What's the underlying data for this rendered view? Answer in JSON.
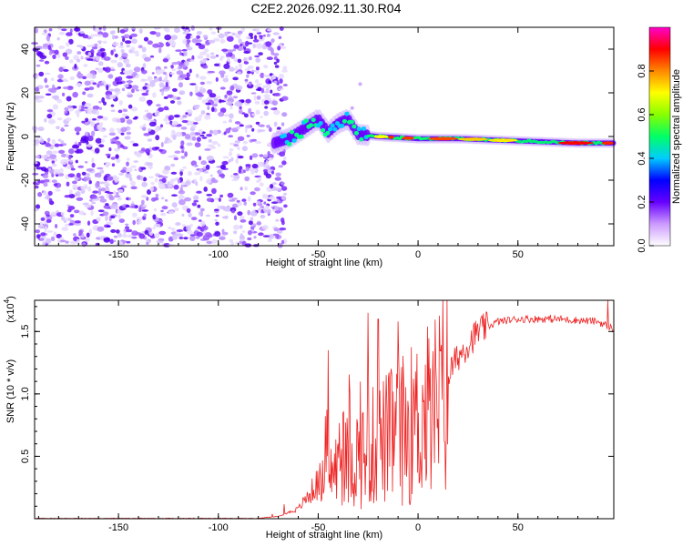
{
  "title": "C2E2.2026.092.11.30.R04",
  "chart_data": [
    {
      "type": "heatmap",
      "name": "spectrogram",
      "xlabel": "Height of straight line (km)",
      "ylabel": "Frequency (Hz)",
      "xlim": [
        -192,
        98
      ],
      "ylim": [
        -50,
        50
      ],
      "xticks": [
        -150,
        -100,
        -50,
        0,
        50
      ],
      "yticks": [
        -40,
        -20,
        0,
        20,
        40
      ],
      "noise_region_x": [
        -192,
        -70
      ],
      "signal_ridge": [
        {
          "x": -72,
          "y": -3
        },
        {
          "x": -65,
          "y": -1
        },
        {
          "x": -58,
          "y": 3
        },
        {
          "x": -50,
          "y": 8
        },
        {
          "x": -45,
          "y": 2
        },
        {
          "x": -40,
          "y": 6
        },
        {
          "x": -35,
          "y": 8
        },
        {
          "x": -30,
          "y": 1
        },
        {
          "x": -20,
          "y": 0
        },
        {
          "x": 0,
          "y": -1
        },
        {
          "x": 20,
          "y": -1
        },
        {
          "x": 50,
          "y": -2
        },
        {
          "x": 80,
          "y": -3
        },
        {
          "x": 98,
          "y": -3
        }
      ],
      "colorbar": {
        "label": "Normalized spectral amplitude",
        "range": [
          0,
          1
        ],
        "ticks": [
          "0.0",
          "0.2",
          "0.4",
          "0.6",
          "0.8"
        ],
        "colors": [
          "#ffffff",
          "#cc99ff",
          "#6600ff",
          "#0000ff",
          "#00ccff",
          "#00ff66",
          "#88ff00",
          "#ffff00",
          "#ff8800",
          "#ff0000",
          "#ff00cc"
        ]
      }
    },
    {
      "type": "line",
      "name": "snr",
      "xlabel": "Height of straight line (km)",
      "ylabel": "SNR (10 * v/v)",
      "yscale_label": "(x10",
      "yscale_exp": "4",
      "xlim": [
        -192,
        98
      ],
      "ylim": [
        0,
        1.75
      ],
      "xticks": [
        -150,
        -100,
        -50,
        0,
        50
      ],
      "yticks": [
        "0.5",
        "1.0",
        "1.5"
      ],
      "ytick_values": [
        0.5,
        1.0,
        1.5
      ],
      "color": "#ee2222",
      "trend": [
        {
          "x": -192,
          "y": 0.0
        },
        {
          "x": -80,
          "y": 0.0
        },
        {
          "x": -70,
          "y": 0.02
        },
        {
          "x": -60,
          "y": 0.08
        },
        {
          "x": -50,
          "y": 0.3
        },
        {
          "x": -40,
          "y": 0.45
        },
        {
          "x": -30,
          "y": 0.55
        },
        {
          "x": -20,
          "y": 0.65
        },
        {
          "x": -10,
          "y": 0.75
        },
        {
          "x": 0,
          "y": 0.85
        },
        {
          "x": 10,
          "y": 1.0
        },
        {
          "x": 20,
          "y": 1.3
        },
        {
          "x": 30,
          "y": 1.5
        },
        {
          "x": 40,
          "y": 1.58
        },
        {
          "x": 50,
          "y": 1.6
        },
        {
          "x": 70,
          "y": 1.6
        },
        {
          "x": 90,
          "y": 1.58
        },
        {
          "x": 98,
          "y": 1.52
        }
      ],
      "peaks": [
        {
          "x": -25,
          "y": 1.65
        },
        {
          "x": -20,
          "y": 1.6
        },
        {
          "x": -10,
          "y": 1.58
        },
        {
          "x": -45,
          "y": 1.35
        },
        {
          "x": 95,
          "y": 1.75
        }
      ]
    }
  ]
}
